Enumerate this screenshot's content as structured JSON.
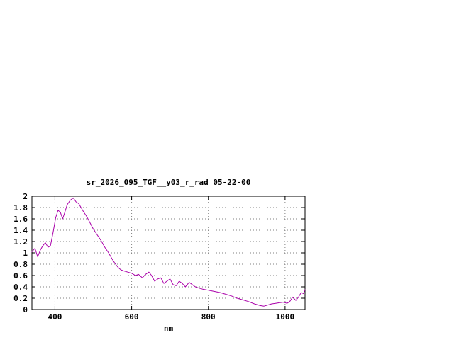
{
  "page": {
    "background_color": "#ffffff"
  },
  "chart_data": {
    "type": "line",
    "title": "sr_2026_095_TGF__y03_r_rad 05-22-00",
    "xlabel": "nm",
    "ylabel": "",
    "xlim": [
      340,
      1052
    ],
    "ylim": [
      0,
      2
    ],
    "x_ticks": [
      400,
      600,
      800,
      1000
    ],
    "y_ticks": [
      0,
      0.2,
      0.4,
      0.6,
      0.8,
      1,
      1.2,
      1.4,
      1.6,
      1.8,
      2
    ],
    "grid": true,
    "legend_position": "none",
    "line_color": "#aa00aa",
    "grid_color": "#808080",
    "axis_color": "#000000",
    "text_color": "#000000",
    "series": [
      {
        "name": "sr_2026_095_TGF__y03_r_rad",
        "x": [
          340,
          348,
          355,
          362,
          368,
          375,
          382,
          388,
          395,
          402,
          408,
          414,
          420,
          426,
          432,
          440,
          448,
          455,
          462,
          468,
          475,
          482,
          490,
          500,
          510,
          520,
          530,
          540,
          550,
          558,
          565,
          572,
          580,
          590,
          600,
          610,
          618,
          628,
          636,
          645,
          652,
          660,
          668,
          676,
          684,
          692,
          700,
          708,
          716,
          724,
          732,
          740,
          750,
          758,
          766,
          775,
          785,
          800,
          815,
          830,
          845,
          860,
          875,
          890,
          905,
          920,
          935,
          945,
          955,
          965,
          975,
          985,
          995,
          1005,
          1012,
          1020,
          1028,
          1035,
          1042,
          1048,
          1052
        ],
        "y": [
          1.02,
          1.08,
          0.93,
          1.05,
          1.12,
          1.18,
          1.1,
          1.12,
          1.35,
          1.62,
          1.75,
          1.72,
          1.6,
          1.72,
          1.85,
          1.93,
          1.97,
          1.9,
          1.87,
          1.8,
          1.72,
          1.65,
          1.55,
          1.42,
          1.32,
          1.22,
          1.1,
          1.0,
          0.88,
          0.8,
          0.74,
          0.7,
          0.68,
          0.66,
          0.64,
          0.6,
          0.62,
          0.56,
          0.62,
          0.66,
          0.6,
          0.5,
          0.54,
          0.56,
          0.46,
          0.5,
          0.54,
          0.44,
          0.42,
          0.5,
          0.46,
          0.4,
          0.48,
          0.44,
          0.4,
          0.38,
          0.36,
          0.34,
          0.32,
          0.3,
          0.27,
          0.24,
          0.2,
          0.17,
          0.14,
          0.1,
          0.07,
          0.06,
          0.08,
          0.1,
          0.11,
          0.12,
          0.13,
          0.11,
          0.14,
          0.22,
          0.16,
          0.22,
          0.3,
          0.28,
          0.35
        ]
      }
    ]
  }
}
